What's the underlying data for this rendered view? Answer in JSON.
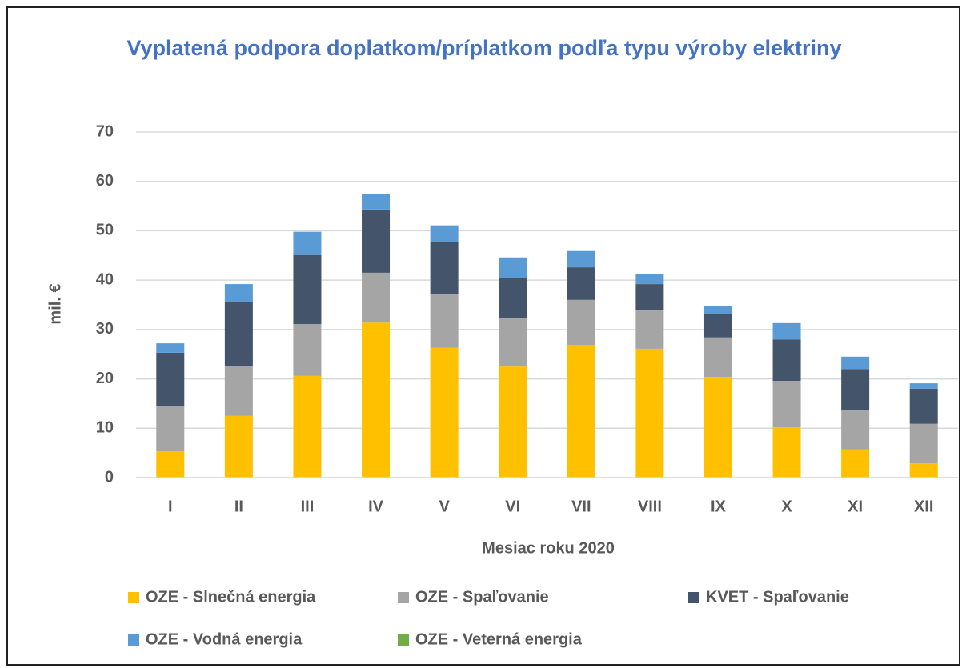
{
  "chart_data": {
    "type": "stacked-bar",
    "title": "Vyplatená podpora doplatkom/príplatkom podľa typu výroby elektriny",
    "x_label": "Mesiac roku 2020",
    "y_label": "mil. €",
    "categories": [
      "I",
      "II",
      "III",
      "IV",
      "V",
      "VI",
      "VII",
      "VIII",
      "IX",
      "X",
      "XI",
      "XII"
    ],
    "series": [
      {
        "name": "OZE - Slnečná energia",
        "color": "#ffc000",
        "values": [
          5.3,
          12.5,
          20.6,
          31.4,
          26.3,
          22.5,
          26.9,
          26.1,
          20.4,
          10.2,
          5.7,
          2.9
        ]
      },
      {
        "name": "OZE - Spaľovanie",
        "color": "#a5a5a5",
        "values": [
          9.1,
          10.0,
          10.5,
          10.1,
          10.8,
          9.8,
          9.1,
          7.9,
          8.0,
          9.4,
          7.9,
          8.0
        ]
      },
      {
        "name": "KVET - Spaľovanie",
        "color": "#44546a",
        "values": [
          10.9,
          13.0,
          14.0,
          12.8,
          10.7,
          8.1,
          6.6,
          5.2,
          4.8,
          8.4,
          8.4,
          7.1
        ]
      },
      {
        "name": "OZE - Vodná energia",
        "color": "#5b9bd5",
        "values": [
          1.9,
          3.7,
          4.7,
          3.2,
          3.3,
          4.2,
          3.3,
          2.1,
          1.6,
          3.3,
          2.5,
          1.1
        ]
      },
      {
        "name": "OZE - Veterná energia",
        "color": "#70ad47",
        "values": [
          0,
          0,
          0,
          0,
          0,
          0,
          0,
          0,
          0,
          0,
          0,
          0
        ]
      }
    ],
    "ylim": [
      0,
      70
    ],
    "yticks": [
      0,
      10,
      20,
      30,
      40,
      50,
      60,
      70
    ],
    "grid": true,
    "legend": "bottom"
  }
}
